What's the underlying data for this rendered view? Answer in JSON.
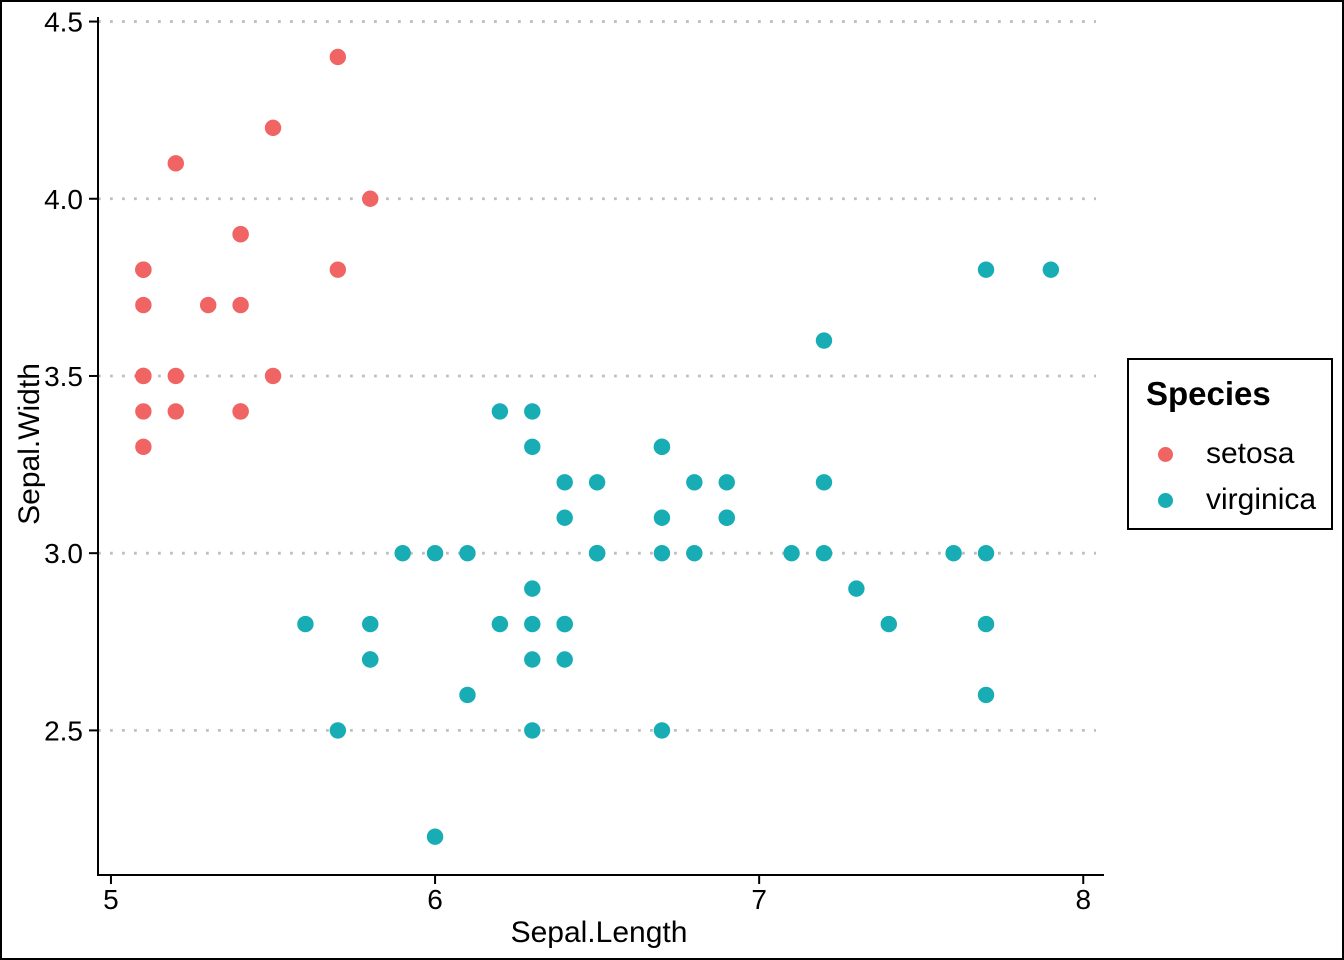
{
  "chart_data": {
    "type": "scatter",
    "title": "",
    "xlabel": "Sepal.Length",
    "ylabel": "Sepal.Width",
    "x_tick_labels": [
      "5",
      "6",
      "7",
      "8"
    ],
    "x_tick_values": [
      5,
      6,
      7,
      8
    ],
    "y_tick_labels": [
      "2.5",
      "3.0",
      "3.5",
      "4.0",
      "4.5"
    ],
    "y_tick_values": [
      2.5,
      3.0,
      3.5,
      4.0,
      4.5
    ],
    "x_range": [
      4.96,
      8.064
    ],
    "y_range": [
      2.092,
      4.51
    ],
    "grid": {
      "horizontal_major": true,
      "vertical": false,
      "style": "dotted",
      "color": "#BFBFBF"
    },
    "axis_color": "#000000",
    "text_color": "#000000",
    "legend": {
      "title": "Species",
      "position": "right",
      "entries": [
        {
          "label": "setosa",
          "color": "#F06564"
        },
        {
          "label": "virginica",
          "color": "#18ADB5"
        }
      ]
    },
    "series": [
      {
        "name": "setosa",
        "color": "#F06564",
        "marker": "circle",
        "points": [
          [
            5.1,
            3.5
          ],
          [
            5.4,
            3.9
          ],
          [
            5.4,
            3.7
          ],
          [
            5.8,
            4.0
          ],
          [
            5.7,
            4.4
          ],
          [
            5.4,
            3.9
          ],
          [
            5.1,
            3.5
          ],
          [
            5.7,
            3.8
          ],
          [
            5.1,
            3.8
          ],
          [
            5.4,
            3.4
          ],
          [
            5.1,
            3.7
          ],
          [
            5.1,
            3.3
          ],
          [
            5.2,
            3.5
          ],
          [
            5.2,
            3.4
          ],
          [
            5.4,
            3.4
          ],
          [
            5.2,
            4.1
          ],
          [
            5.5,
            4.2
          ],
          [
            5.5,
            3.5
          ],
          [
            5.1,
            3.4
          ],
          [
            5.1,
            3.8
          ],
          [
            5.3,
            3.7
          ],
          [
            5.1,
            3.8
          ]
        ]
      },
      {
        "name": "virginica",
        "color": "#18ADB5",
        "marker": "circle",
        "points": [
          [
            6.3,
            3.3
          ],
          [
            5.8,
            2.7
          ],
          [
            7.1,
            3.0
          ],
          [
            6.3,
            2.9
          ],
          [
            6.5,
            3.0
          ],
          [
            7.6,
            3.0
          ],
          [
            7.3,
            2.9
          ],
          [
            6.7,
            2.5
          ],
          [
            7.2,
            3.6
          ],
          [
            6.5,
            3.2
          ],
          [
            6.4,
            2.7
          ],
          [
            6.8,
            3.0
          ],
          [
            5.7,
            2.5
          ],
          [
            5.8,
            2.8
          ],
          [
            6.4,
            3.2
          ],
          [
            6.5,
            3.0
          ],
          [
            7.7,
            3.8
          ],
          [
            7.7,
            2.6
          ],
          [
            6.0,
            2.2
          ],
          [
            6.9,
            3.2
          ],
          [
            5.6,
            2.8
          ],
          [
            7.7,
            2.8
          ],
          [
            6.3,
            2.7
          ],
          [
            6.7,
            3.3
          ],
          [
            7.2,
            3.2
          ],
          [
            6.2,
            2.8
          ],
          [
            6.1,
            3.0
          ],
          [
            6.4,
            2.8
          ],
          [
            7.2,
            3.0
          ],
          [
            7.4,
            2.8
          ],
          [
            7.9,
            3.8
          ],
          [
            6.4,
            2.8
          ],
          [
            6.3,
            2.8
          ],
          [
            6.1,
            2.6
          ],
          [
            7.7,
            3.0
          ],
          [
            6.3,
            3.4
          ],
          [
            6.4,
            3.1
          ],
          [
            6.0,
            3.0
          ],
          [
            6.9,
            3.1
          ],
          [
            6.7,
            3.1
          ],
          [
            6.9,
            3.1
          ],
          [
            5.8,
            2.7
          ],
          [
            6.8,
            3.2
          ],
          [
            6.7,
            3.3
          ],
          [
            6.7,
            3.0
          ],
          [
            6.3,
            2.5
          ],
          [
            6.5,
            3.0
          ],
          [
            6.2,
            3.4
          ],
          [
            5.9,
            3.0
          ]
        ]
      }
    ]
  }
}
